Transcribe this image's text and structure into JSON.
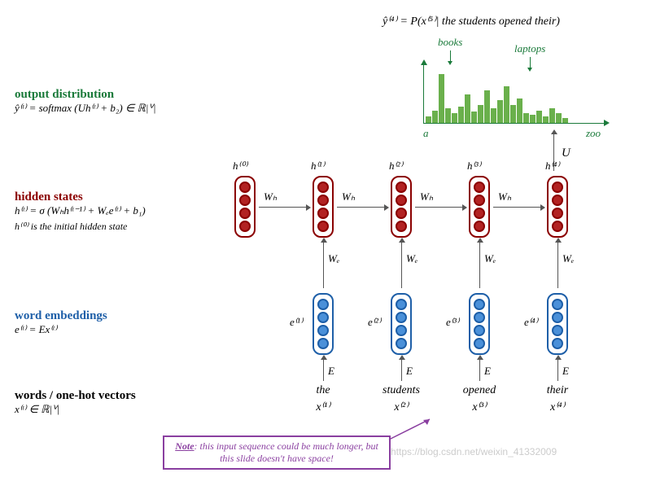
{
  "colors": {
    "output_label": "#1a7a3a",
    "hidden_label": "#8b0000",
    "embed_label": "#1e5fa8",
    "word_label": "#000000",
    "hidden_border": "#8b0000",
    "hidden_fill": "#b22222",
    "embed_border": "#1e5fa8",
    "embed_fill": "#4a90d9",
    "chart_bar": "#6ab04c",
    "chart_axis": "#1a7a3a",
    "note_border": "#8a3fa0"
  },
  "sections": {
    "output": {
      "title": "output distribution",
      "formula": "ŷ⁽ᵗ⁾ = softmax (Uh⁽ᵗ⁾ + b₂) ∈ ℝ|ⱽ|"
    },
    "hidden": {
      "title": "hidden states",
      "formula": "h⁽ᵗ⁾ = σ (Wₕh⁽ᵗ⁻¹⁾ + Wₑe⁽ᵗ⁾ + b₁)",
      "note": "h⁽⁰⁾ is the initial hidden state"
    },
    "embed": {
      "title": "word embeddings",
      "formula": "e⁽ᵗ⁾ = Ex⁽ᵗ⁾"
    },
    "words": {
      "title": "words / one-hot vectors",
      "formula": "x⁽ᵗ⁾ ∈ ℝ|ⱽ|"
    }
  },
  "timesteps": {
    "count": 5,
    "hidden_labels": [
      "h⁽⁰⁾",
      "h⁽¹⁾",
      "h⁽²⁾",
      "h⁽³⁾",
      "h⁽⁴⁾"
    ],
    "embed_labels": [
      "e⁽¹⁾",
      "e⁽²⁾",
      "e⁽³⁾",
      "e⁽⁴⁾"
    ],
    "word_tokens": [
      "the",
      "students",
      "opened",
      "their"
    ],
    "word_vars": [
      "x⁽¹⁾",
      "x⁽²⁾",
      "x⁽³⁾",
      "x⁽⁴⁾"
    ],
    "neurons_per_block": 4
  },
  "weight_labels": {
    "Wh": "Wₕ",
    "We": "Wₑ",
    "E": "E",
    "U": "U"
  },
  "chart": {
    "title": "ŷ⁽⁴⁾ = P(x⁽⁵⁾| the students opened their)",
    "callouts": [
      {
        "label": "books",
        "color": "#1a7a3a"
      },
      {
        "label": "laptops",
        "color": "#1a7a3a"
      }
    ],
    "axis_left": "a",
    "axis_right": "zoo",
    "bars": [
      8,
      15,
      60,
      18,
      12,
      20,
      35,
      14,
      22,
      40,
      18,
      28,
      45,
      22,
      30,
      12,
      10,
      15,
      8,
      18,
      12,
      6
    ]
  },
  "note": {
    "prefix": "Note",
    "text": ": this input sequence could be much longer, but this slide doesn't have space!"
  },
  "watermark": "https://blog.csdn.net/weixin_41332009"
}
